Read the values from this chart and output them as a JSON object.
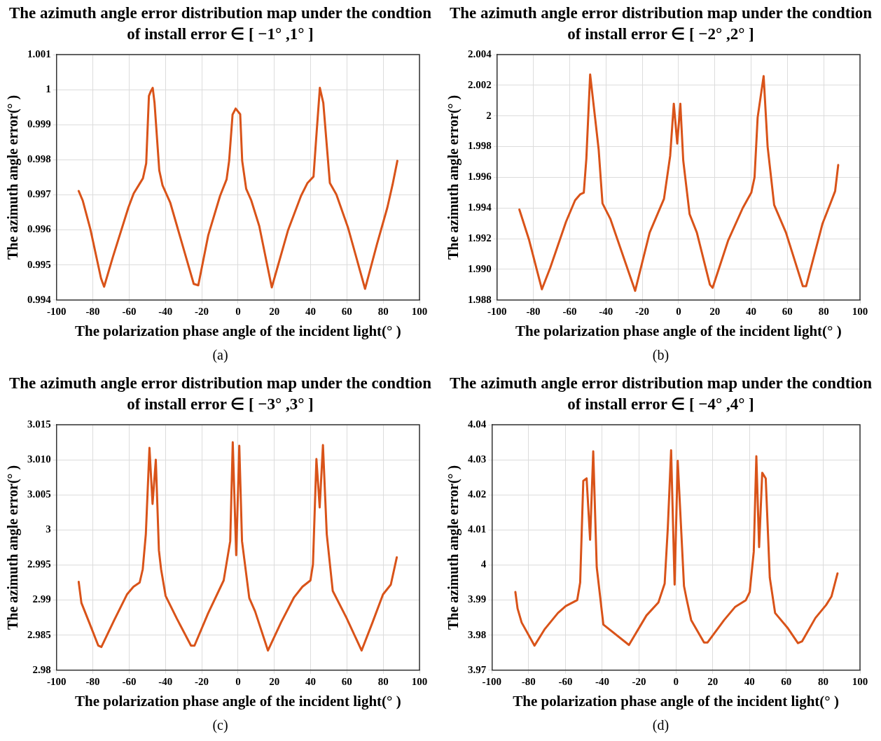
{
  "chart_data": [
    {
      "type": "line",
      "title": "The azimuth angle error distribution map under the condtion of install error ∈ [ −1° ,1° ]",
      "xlabel": "The polarization phase angle of the incident light(° )",
      "ylabel": "The azimuth angle error(° )",
      "annotations": [
        "(a)"
      ],
      "xlim": [
        -100,
        100
      ],
      "xticks": [
        -100,
        -80,
        -60,
        -40,
        -20,
        0,
        20,
        40,
        60,
        80,
        100
      ],
      "ylim": [
        0.994,
        1.001
      ],
      "yticks": [
        0.994,
        0.995,
        0.996,
        0.997,
        0.998,
        0.999,
        1,
        1.001
      ],
      "grid": true,
      "series": [
        {
          "color": "#d95319",
          "x": [
            -87.8,
            -85.6,
            -81.3,
            -75.5,
            -73.8,
            -69.0,
            -60.4,
            -57.5,
            -52.4,
            -50.6,
            -49.1,
            -48.1,
            -47.0,
            -46.0,
            -43.4,
            -41.6,
            -37.3,
            -24.4,
            -21.9,
            -16.4,
            -9.9,
            -6.3,
            -4.9,
            -3.0,
            -1.3,
            1.2,
            2.3,
            4.5,
            7.3,
            11.7,
            18.6,
            27.5,
            34.7,
            38.3,
            41.6,
            43.1,
            45.1,
            47.0,
            50.6,
            54.2,
            60.7,
            70.0,
            76.5,
            82.3,
            85.2,
            87.8
          ],
          "values": [
            0.99711,
            0.99684,
            0.99601,
            0.99462,
            0.99438,
            0.99522,
            0.99664,
            0.99704,
            0.99747,
            0.9979,
            0.99982,
            0.99995,
            1.00005,
            0.99962,
            0.9977,
            0.99727,
            0.99677,
            0.99446,
            0.99442,
            0.99585,
            0.99697,
            0.99744,
            0.99797,
            0.99929,
            0.99946,
            0.9993,
            0.99797,
            0.99717,
            0.99684,
            0.99611,
            0.99436,
            0.99598,
            0.99697,
            0.99734,
            0.99752,
            0.99863,
            1.00005,
            0.99962,
            0.99734,
            0.99701,
            0.99605,
            0.99432,
            0.99558,
            0.99664,
            0.9973,
            0.99797
          ]
        }
      ]
    },
    {
      "type": "line",
      "title": "The azimuth angle error distribution map under the condtion of install error ∈ [ −2° ,2° ]",
      "xlabel": "The polarization phase angle of the incident light(° )",
      "ylabel": "The azimuth angle error(° )",
      "annotations": [
        "(b)"
      ],
      "xlim": [
        -100,
        100
      ],
      "xticks": [
        -100,
        -80,
        -60,
        -40,
        -20,
        0,
        20,
        40,
        60,
        80,
        100
      ],
      "ylim": [
        1.988,
        2.004
      ],
      "yticks": [
        1.988,
        {
          "value": 1.99,
          "label": "1.990"
        },
        1.992,
        1.994,
        1.996,
        1.998,
        2,
        2.002,
        2.004
      ],
      "grid": true,
      "series": [
        {
          "color": "#d95319",
          "x": [
            -87.7,
            -82.3,
            -75.3,
            -70.7,
            -62.0,
            -57.0,
            -54.1,
            -52.2,
            -50.8,
            -48.7,
            -45.9,
            -44.0,
            -41.9,
            -37.6,
            -23.9,
            -15.9,
            -8.0,
            -4.6,
            -2.6,
            -0.7,
            1.0,
            2.6,
            6.1,
            10.1,
            17.3,
            18.8,
            27.4,
            35.4,
            40.1,
            41.9,
            43.6,
            46.9,
            49.1,
            52.7,
            59.2,
            68.5,
            70.3,
            79.4,
            83.7,
            86.3,
            88.0
          ],
          "values": [
            1.9939,
            1.9919,
            1.9887,
            1.9901,
            1.9931,
            1.9945,
            1.9949,
            1.995,
            1.9972,
            2.0027,
            1.9998,
            1.9978,
            1.9943,
            1.9933,
            1.9886,
            1.9924,
            1.9946,
            1.9974,
            2.0008,
            1.9982,
            2.0008,
            1.9971,
            1.9936,
            1.9924,
            1.989,
            1.9888,
            1.9919,
            1.994,
            1.995,
            1.996,
            1.9999,
            2.0026,
            1.998,
            1.9942,
            1.9924,
            1.9889,
            1.9889,
            1.993,
            1.9943,
            1.9951,
            1.9968
          ]
        }
      ]
    },
    {
      "type": "line",
      "title": "The azimuth angle error distribution map under the condtion of install error ∈ [ −3° ,3° ]",
      "xlabel": "The polarization phase angle of the incident light(° )",
      "ylabel": "The azimuth angle error(° )",
      "annotations": [
        "(c)"
      ],
      "xlim": [
        -100,
        100
      ],
      "xticks": [
        -100,
        -80,
        -60,
        -40,
        -20,
        0,
        20,
        40,
        60,
        80,
        100
      ],
      "ylim": [
        2.98,
        3.015
      ],
      "yticks": [
        2.98,
        2.985,
        2.99,
        2.995,
        3,
        3.005,
        {
          "value": 3.01,
          "label": "3.010"
        },
        3.015
      ],
      "grid": true,
      "series": [
        {
          "color": "#d95319",
          "x": [
            -87.8,
            -86.3,
            -82.0,
            -77.0,
            -75.3,
            -68.3,
            -61.2,
            -57.6,
            -54.2,
            -52.5,
            -50.8,
            -48.8,
            -47.1,
            -45.3,
            -43.6,
            -42.4,
            -39.9,
            -33.8,
            -25.9,
            -24.0,
            -16.5,
            -7.9,
            -4.3,
            -2.9,
            -1.0,
            0.7,
            2.2,
            6.2,
            9.4,
            16.5,
            23.7,
            30.9,
            35.5,
            39.9,
            41.3,
            43.2,
            45.0,
            46.8,
            48.9,
            52.2,
            59.7,
            68.1,
            74.1,
            79.9,
            84.2,
            87.5
          ],
          "values": [
            2.9926,
            2.9896,
            2.9868,
            2.9835,
            2.9833,
            2.9871,
            2.9908,
            2.9919,
            2.9925,
            2.9944,
            2.9994,
            3.0117,
            3.0037,
            3.01,
            2.9971,
            2.9944,
            2.9906,
            2.9874,
            2.9835,
            2.9835,
            2.9881,
            2.9928,
            2.9984,
            3.0125,
            2.9964,
            3.012,
            2.9984,
            2.9903,
            2.9884,
            2.9828,
            2.9868,
            2.9904,
            2.9919,
            2.9928,
            2.9951,
            3.0101,
            3.0032,
            3.0121,
            2.9994,
            2.9913,
            2.9875,
            2.9828,
            2.9868,
            2.9908,
            2.9922,
            2.9961
          ]
        }
      ]
    },
    {
      "type": "line",
      "title": "The azimuth angle error distribution map under the condtion of install error ∈ [ −4° ,4° ]",
      "xlabel": "The polarization phase angle of the incident light(° )",
      "ylabel": "The azimuth angle error(° )",
      "annotations": [
        "(d)"
      ],
      "xlim": [
        -100,
        100
      ],
      "xticks": [
        -100,
        -80,
        -60,
        -40,
        -20,
        0,
        20,
        40,
        60,
        80,
        100
      ],
      "ylim": [
        3.97,
        4.04
      ],
      "yticks": [
        3.97,
        3.98,
        3.99,
        4,
        4.01,
        4.02,
        4.03,
        4.04
      ],
      "grid": true,
      "series": [
        {
          "color": "#d95319",
          "x": [
            -87.2,
            -86.0,
            -83.8,
            -76.8,
            -71.4,
            -64.1,
            -59.8,
            -53.6,
            -52.0,
            -50.3,
            -48.5,
            -46.6,
            -44.9,
            -43.0,
            -39.4,
            -26.2,
            -25.5,
            -16.0,
            -9.5,
            -6.1,
            -4.4,
            -2.6,
            -0.7,
            1.0,
            4.4,
            5.8,
            8.3,
            15.3,
            17.2,
            26.2,
            32.1,
            37.9,
            40.1,
            42.3,
            43.7,
            45.2,
            46.9,
            48.8,
            51.0,
            53.9,
            60.5,
            66.3,
            68.5,
            75.8,
            81.6,
            84.5,
            87.8
          ],
          "values": [
            3.9923,
            3.9876,
            3.9836,
            3.977,
            3.9816,
            3.9863,
            3.9883,
            3.99,
            3.995,
            4.024,
            4.0247,
            4.0072,
            4.0324,
            3.9994,
            3.983,
            3.9775,
            3.9772,
            3.9856,
            3.9893,
            3.9947,
            4.0105,
            4.0327,
            3.9944,
            4.0297,
            3.994,
            3.9903,
            3.9843,
            3.9779,
            3.9779,
            3.9843,
            3.988,
            3.9899,
            3.9923,
            4.0038,
            4.031,
            4.0051,
            4.0263,
            4.0247,
            3.9964,
            3.9863,
            3.9822,
            3.9777,
            3.9782,
            3.9849,
            3.9886,
            3.991,
            3.9976
          ]
        }
      ]
    }
  ]
}
